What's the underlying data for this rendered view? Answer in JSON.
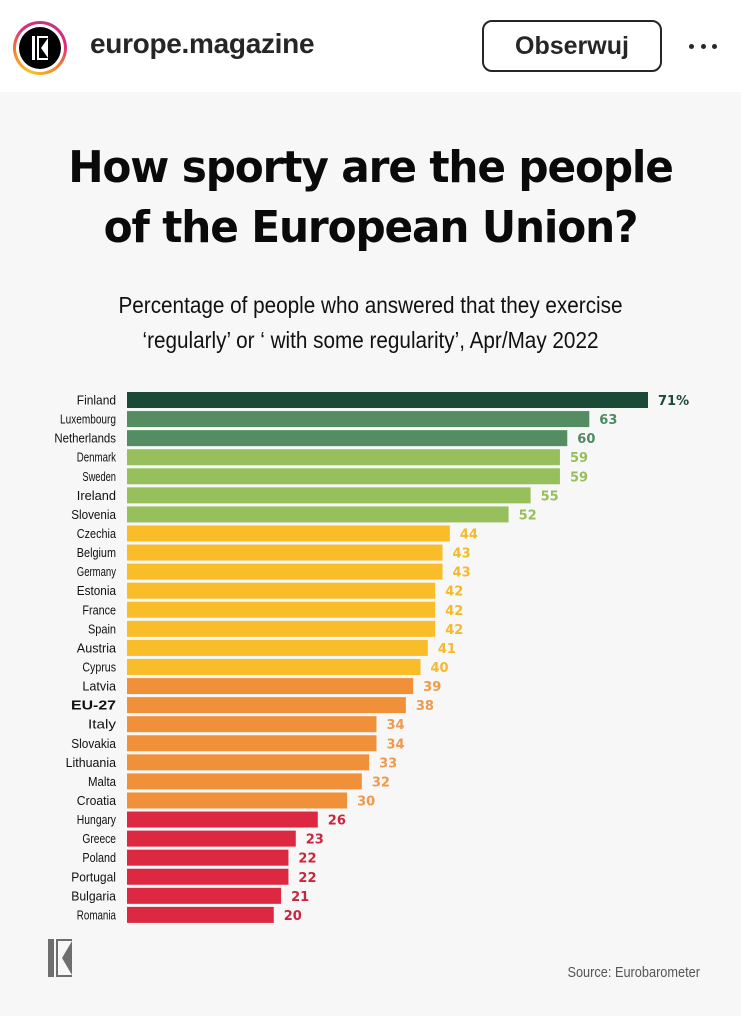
{
  "header": {
    "username": "europe.magazine",
    "follow_label": "Obserwuj",
    "more_icon": "more-horizontal-icon",
    "avatar_icon": "europe-magazine-logo-icon"
  },
  "colors": {
    "dark_green": "#1b4a37",
    "mid_green": "#558d63",
    "light_green": "#97c05c",
    "yellow": "#f9bd2a",
    "orange": "#f0913a",
    "red": "#dc2840",
    "background": "#f7f7f7"
  },
  "chart_data": {
    "type": "bar",
    "orientation": "horizontal",
    "title": "How sporty are the people of the European Union?",
    "title_lines": [
      "How sporty are the people",
      "of the European Union?"
    ],
    "subtitle": "Percentage of people who answered that they exercise ‘regularly’ or ‘ with some regularity’, Apr/May 2022",
    "subtitle_lines": [
      "Percentage of people who answered that they exercise",
      "‘regularly’ or ‘ with some regularity’, Apr/May 2022"
    ],
    "xlabel": "",
    "ylabel": "",
    "unit": "%",
    "xlim": [
      0,
      71
    ],
    "grid": false,
    "source": "Source: Eurobarometer",
    "categories": [
      "Finland",
      "Luxembourg",
      "Netherlands",
      "Denmark",
      "Sweden",
      "Ireland",
      "Slovenia",
      "Czechia",
      "Belgium",
      "Germany",
      "Estonia",
      "France",
      "Spain",
      "Austria",
      "Cyprus",
      "Latvia",
      "EU-27",
      "Italy",
      "Slovakia",
      "Lithuania",
      "Malta",
      "Croatia",
      "Hungary",
      "Greece",
      "Poland",
      "Portugal",
      "Bulgaria",
      "Romania"
    ],
    "values": [
      71,
      63,
      60,
      59,
      59,
      55,
      52,
      44,
      43,
      43,
      42,
      42,
      42,
      41,
      40,
      39,
      38,
      34,
      34,
      33,
      32,
      30,
      26,
      23,
      22,
      22,
      21,
      20
    ],
    "value_labels": [
      "71%",
      "63",
      "60",
      "59",
      "59",
      "55",
      "52",
      "44",
      "43",
      "43",
      "42",
      "42",
      "42",
      "41",
      "40",
      "39",
      "38",
      "34",
      "34",
      "33",
      "32",
      "30",
      "26",
      "23",
      "22",
      "22",
      "21",
      "20"
    ],
    "color_groups": [
      "dark_green",
      "mid_green",
      "mid_green",
      "light_green",
      "light_green",
      "light_green",
      "light_green",
      "yellow",
      "yellow",
      "yellow",
      "yellow",
      "yellow",
      "yellow",
      "yellow",
      "yellow",
      "orange",
      "orange",
      "orange",
      "orange",
      "orange",
      "orange",
      "orange",
      "red",
      "red",
      "red",
      "red",
      "red",
      "red"
    ],
    "label_colors": [
      "#1b4a37",
      "#4e8a60",
      "#4e8a60",
      "#95bf5a",
      "#95bf5a",
      "#95bf5a",
      "#95bf5a",
      "#f5b92a",
      "#f5b92a",
      "#f5b92a",
      "#f5b92a",
      "#f5b92a",
      "#f5b92a",
      "#f5b92a",
      "#f5b92a",
      "#ef9a4a",
      "#ef9a4a",
      "#ef9a4a",
      "#ef9a4a",
      "#ef9a4a",
      "#ef9a4a",
      "#ef9a4a",
      "#c8263c",
      "#c8263c",
      "#c8263c",
      "#c8263c",
      "#c8263c",
      "#c8263c"
    ],
    "highlight": "EU-27"
  }
}
